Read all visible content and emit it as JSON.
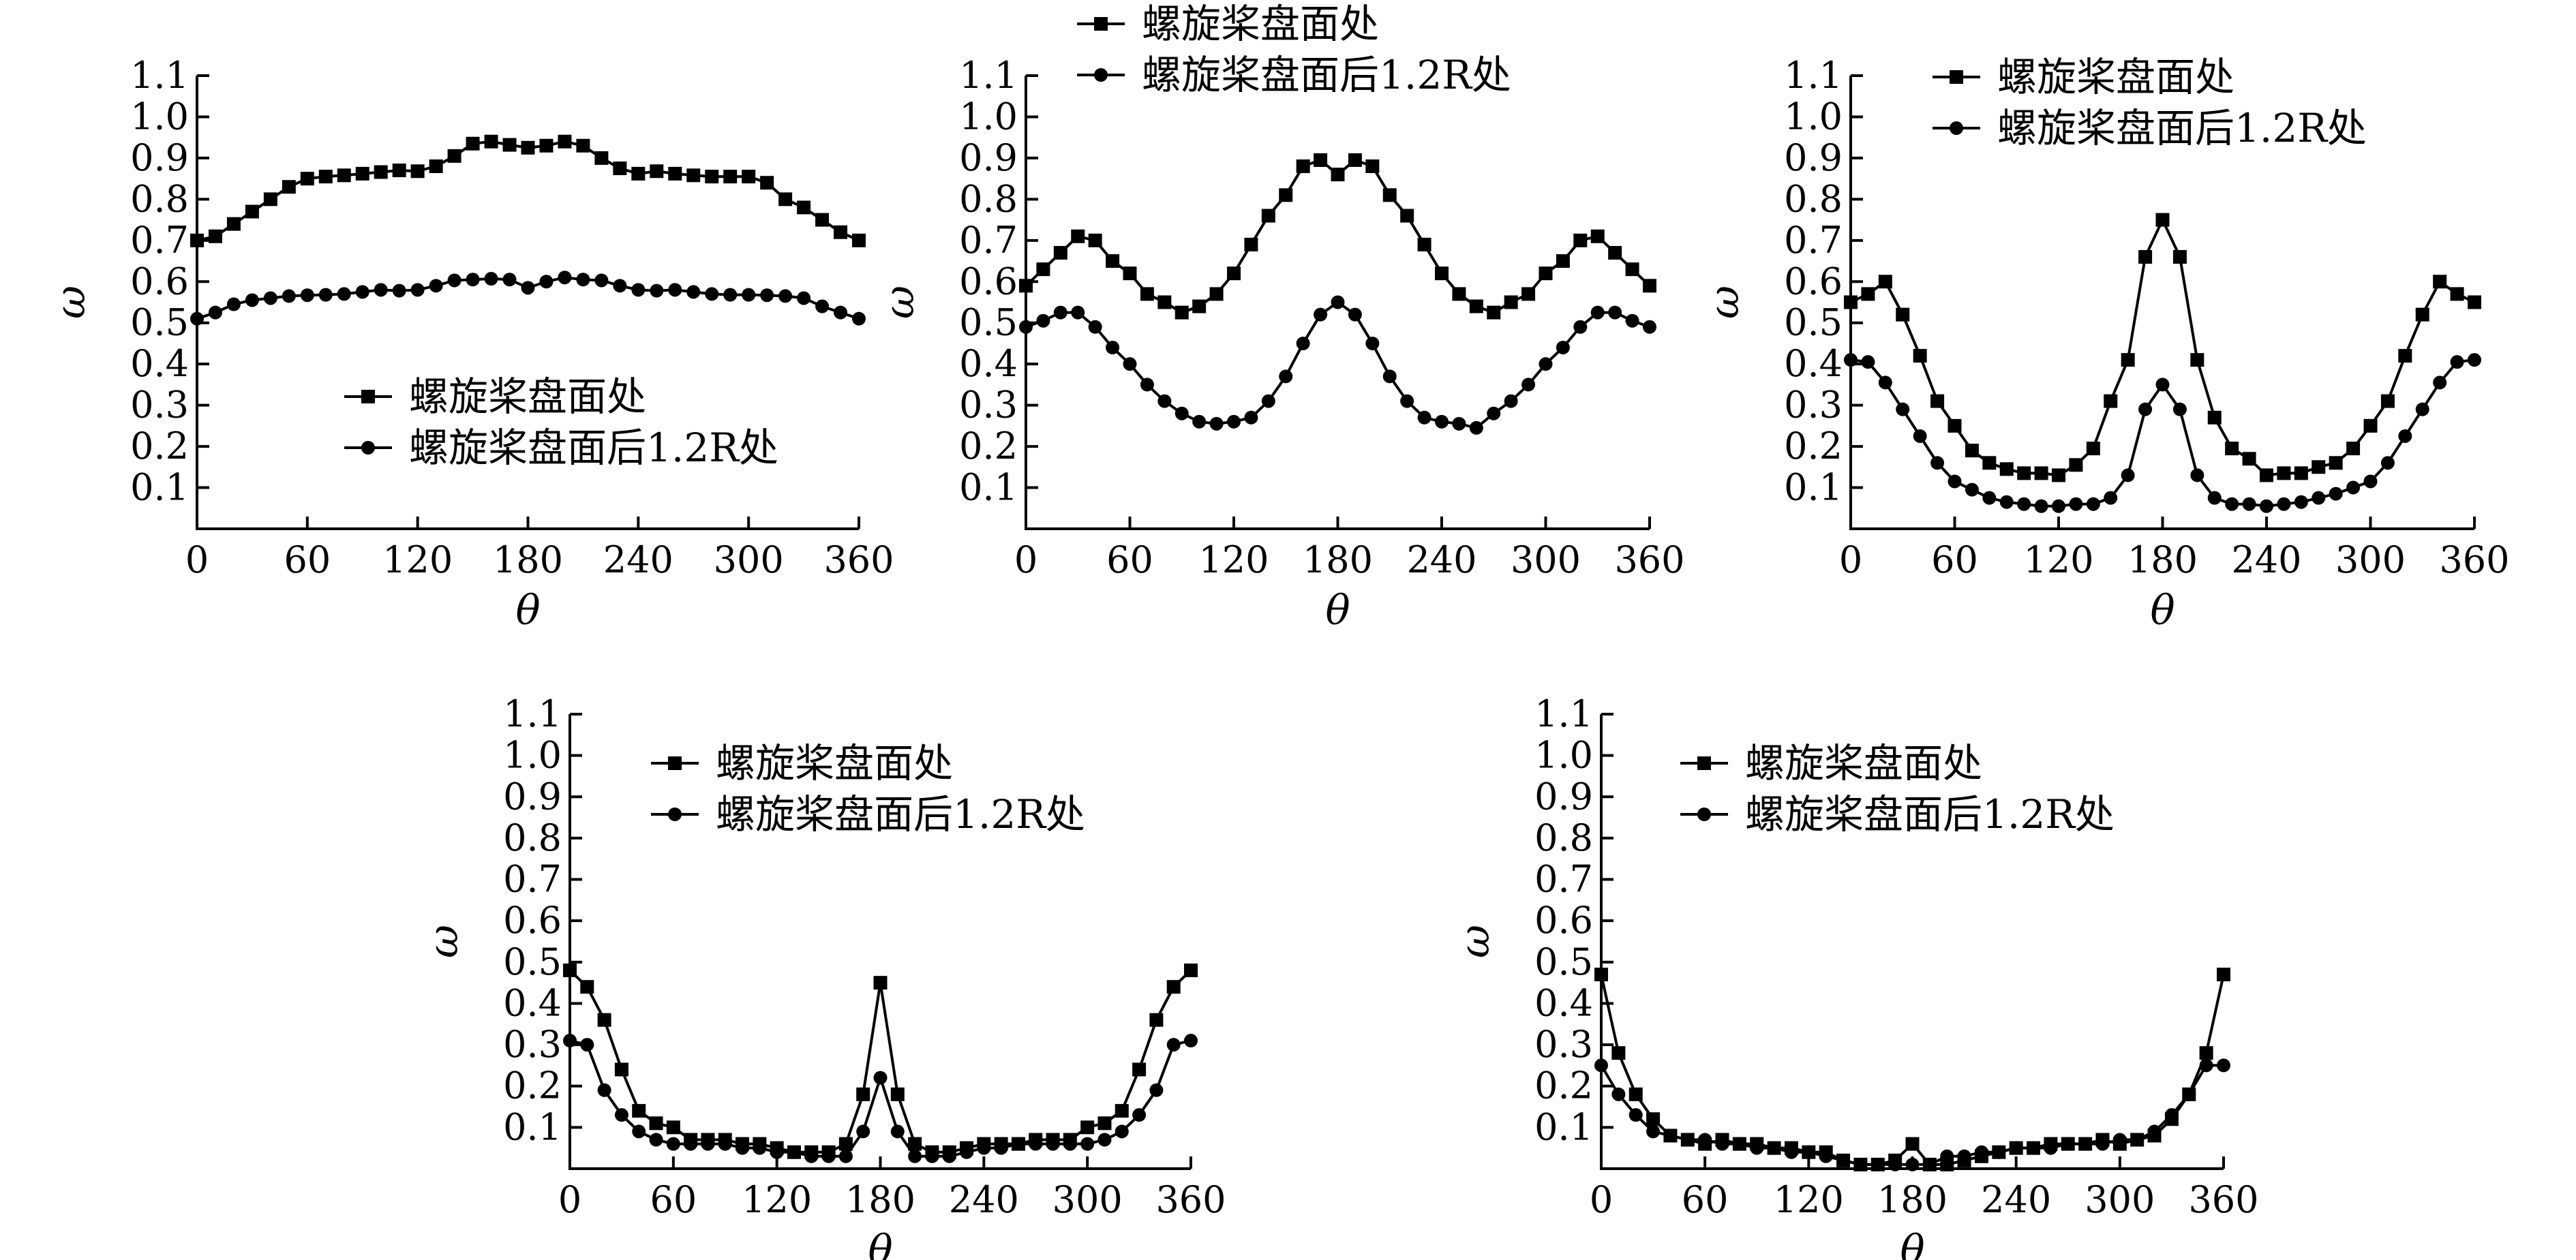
{
  "chart_data": [
    {
      "type": "line",
      "xlabel": "θ",
      "ylabel": "ω",
      "xlim": [
        0,
        360
      ],
      "ylim": [
        0,
        1.1
      ],
      "xticks": [
        "0",
        "60",
        "120",
        "180",
        "240",
        "300",
        "360"
      ],
      "yticks": [
        "0.1",
        "0.2",
        "0.3",
        "0.4",
        "0.5",
        "0.6",
        "0.7",
        "0.8",
        "0.9",
        "1.0",
        "1.1"
      ],
      "legend_position": "bottom-left",
      "x": [
        0,
        10,
        20,
        30,
        40,
        50,
        60,
        70,
        80,
        90,
        100,
        110,
        120,
        130,
        140,
        150,
        160,
        170,
        180,
        190,
        200,
        210,
        220,
        230,
        240,
        250,
        260,
        270,
        280,
        290,
        300,
        310,
        320,
        330,
        340,
        350,
        360
      ],
      "series": [
        {
          "name": "螺旋桨盘面处",
          "marker": "square",
          "values": [
            0.7,
            0.71,
            0.74,
            0.77,
            0.8,
            0.83,
            0.85,
            0.855,
            0.858,
            0.862,
            0.866,
            0.87,
            0.868,
            0.88,
            0.905,
            0.935,
            0.94,
            0.932,
            0.925,
            0.93,
            0.94,
            0.93,
            0.9,
            0.875,
            0.862,
            0.868,
            0.862,
            0.858,
            0.855,
            0.855,
            0.855,
            0.84,
            0.8,
            0.78,
            0.75,
            0.72,
            0.7
          ]
        },
        {
          "name": "螺旋桨盘面后1.2R处",
          "marker": "circle",
          "values": [
            0.51,
            0.525,
            0.545,
            0.555,
            0.56,
            0.565,
            0.567,
            0.568,
            0.57,
            0.575,
            0.58,
            0.578,
            0.58,
            0.59,
            0.603,
            0.605,
            0.607,
            0.605,
            0.585,
            0.6,
            0.61,
            0.605,
            0.603,
            0.59,
            0.58,
            0.578,
            0.58,
            0.575,
            0.57,
            0.568,
            0.568,
            0.567,
            0.565,
            0.56,
            0.54,
            0.525,
            0.51
          ]
        }
      ]
    },
    {
      "type": "line",
      "xlabel": "θ",
      "ylabel": "ω",
      "xlim": [
        0,
        360
      ],
      "ylim": [
        0,
        1.1
      ],
      "xticks": [
        "0",
        "60",
        "120",
        "180",
        "240",
        "300",
        "360"
      ],
      "yticks": [
        "0.1",
        "0.2",
        "0.3",
        "0.4",
        "0.5",
        "0.6",
        "0.7",
        "0.8",
        "0.9",
        "1.0",
        "1.1"
      ],
      "legend_position": "top-left",
      "x": [
        0,
        10,
        20,
        30,
        40,
        50,
        60,
        70,
        80,
        90,
        100,
        110,
        120,
        130,
        140,
        150,
        160,
        170,
        180,
        190,
        200,
        210,
        220,
        230,
        240,
        250,
        260,
        270,
        280,
        290,
        300,
        310,
        320,
        330,
        340,
        350,
        360
      ],
      "series": [
        {
          "name": "螺旋桨盘面处",
          "marker": "square",
          "values": [
            0.59,
            0.63,
            0.67,
            0.71,
            0.7,
            0.65,
            0.62,
            0.57,
            0.55,
            0.525,
            0.54,
            0.57,
            0.62,
            0.69,
            0.76,
            0.81,
            0.88,
            0.895,
            0.86,
            0.895,
            0.88,
            0.81,
            0.76,
            0.69,
            0.62,
            0.57,
            0.54,
            0.525,
            0.55,
            0.57,
            0.62,
            0.65,
            0.7,
            0.71,
            0.67,
            0.63,
            0.59
          ]
        },
        {
          "name": "螺旋桨盘面后1.2R处",
          "marker": "circle",
          "values": [
            0.49,
            0.505,
            0.525,
            0.525,
            0.49,
            0.44,
            0.4,
            0.35,
            0.31,
            0.28,
            0.26,
            0.255,
            0.26,
            0.27,
            0.31,
            0.37,
            0.45,
            0.52,
            0.55,
            0.52,
            0.45,
            0.37,
            0.31,
            0.27,
            0.26,
            0.255,
            0.245,
            0.28,
            0.31,
            0.35,
            0.4,
            0.44,
            0.49,
            0.525,
            0.525,
            0.505,
            0.49
          ]
        }
      ]
    },
    {
      "type": "line",
      "xlabel": "θ",
      "ylabel": "ω",
      "xlim": [
        0,
        360
      ],
      "ylim": [
        0,
        1.1
      ],
      "xticks": [
        "0",
        "60",
        "120",
        "180",
        "240",
        "300",
        "360"
      ],
      "yticks": [
        "0.1",
        "0.2",
        "0.3",
        "0.4",
        "0.5",
        "0.6",
        "0.7",
        "0.8",
        "0.9",
        "1.0",
        "1.1"
      ],
      "legend_position": "top-left",
      "x": [
        0,
        10,
        20,
        30,
        40,
        50,
        60,
        70,
        80,
        90,
        100,
        110,
        120,
        130,
        140,
        150,
        160,
        170,
        180,
        190,
        200,
        210,
        220,
        230,
        240,
        250,
        260,
        270,
        280,
        290,
        300,
        310,
        320,
        330,
        340,
        350,
        360
      ],
      "series": [
        {
          "name": "螺旋桨盘面处",
          "marker": "square",
          "values": [
            0.55,
            0.57,
            0.6,
            0.52,
            0.42,
            0.31,
            0.25,
            0.19,
            0.16,
            0.145,
            0.135,
            0.135,
            0.13,
            0.155,
            0.195,
            0.31,
            0.41,
            0.66,
            0.75,
            0.66,
            0.41,
            0.27,
            0.195,
            0.17,
            0.13,
            0.135,
            0.135,
            0.15,
            0.16,
            0.195,
            0.25,
            0.31,
            0.42,
            0.52,
            0.6,
            0.57,
            0.55
          ]
        },
        {
          "name": "螺旋桨盘面后1.2R处",
          "marker": "circle",
          "values": [
            0.41,
            0.405,
            0.355,
            0.29,
            0.225,
            0.16,
            0.115,
            0.095,
            0.075,
            0.065,
            0.06,
            0.055,
            0.055,
            0.06,
            0.06,
            0.075,
            0.13,
            0.29,
            0.35,
            0.29,
            0.13,
            0.075,
            0.06,
            0.06,
            0.055,
            0.06,
            0.065,
            0.075,
            0.085,
            0.1,
            0.115,
            0.16,
            0.225,
            0.29,
            0.355,
            0.405,
            0.41
          ]
        }
      ]
    },
    {
      "type": "line",
      "xlabel": "θ",
      "ylabel": "ω",
      "xlim": [
        0,
        360
      ],
      "ylim": [
        0,
        1.1
      ],
      "xticks": [
        "0",
        "60",
        "120",
        "180",
        "240",
        "300",
        "360"
      ],
      "yticks": [
        "0.1",
        "0.2",
        "0.3",
        "0.4",
        "0.5",
        "0.6",
        "0.7",
        "0.8",
        "0.9",
        "1.0",
        "1.1"
      ],
      "legend_position": "top-left",
      "x": [
        0,
        10,
        20,
        30,
        40,
        50,
        60,
        70,
        80,
        90,
        100,
        110,
        120,
        130,
        140,
        150,
        160,
        170,
        180,
        190,
        200,
        210,
        220,
        230,
        240,
        250,
        260,
        270,
        280,
        290,
        300,
        310,
        320,
        330,
        340,
        350,
        360
      ],
      "series": [
        {
          "name": "螺旋桨盘面处",
          "marker": "square",
          "values": [
            0.48,
            0.44,
            0.36,
            0.24,
            0.14,
            0.11,
            0.1,
            0.07,
            0.07,
            0.07,
            0.06,
            0.06,
            0.05,
            0.04,
            0.04,
            0.04,
            0.06,
            0.18,
            0.45,
            0.18,
            0.06,
            0.04,
            0.04,
            0.05,
            0.06,
            0.06,
            0.06,
            0.07,
            0.07,
            0.07,
            0.1,
            0.11,
            0.14,
            0.24,
            0.36,
            0.44,
            0.48
          ]
        },
        {
          "name": "螺旋桨盘面后1.2R处",
          "marker": "circle",
          "values": [
            0.31,
            0.3,
            0.19,
            0.13,
            0.09,
            0.07,
            0.06,
            0.06,
            0.06,
            0.06,
            0.05,
            0.05,
            0.04,
            0.04,
            0.03,
            0.03,
            0.03,
            0.09,
            0.22,
            0.09,
            0.03,
            0.03,
            0.03,
            0.04,
            0.05,
            0.05,
            0.06,
            0.06,
            0.06,
            0.06,
            0.06,
            0.07,
            0.09,
            0.13,
            0.19,
            0.3,
            0.31
          ]
        }
      ]
    },
    {
      "type": "line",
      "xlabel": "θ",
      "ylabel": "ω",
      "xlim": [
        0,
        360
      ],
      "ylim": [
        0,
        1.1
      ],
      "xticks": [
        "0",
        "60",
        "120",
        "180",
        "240",
        "300",
        "360"
      ],
      "yticks": [
        "0.1",
        "0.2",
        "0.3",
        "0.4",
        "0.5",
        "0.6",
        "0.7",
        "0.8",
        "0.9",
        "1.0",
        "1.1"
      ],
      "legend_position": "top-left",
      "x": [
        0,
        10,
        20,
        30,
        40,
        50,
        60,
        70,
        80,
        90,
        100,
        110,
        120,
        130,
        140,
        150,
        160,
        170,
        180,
        190,
        200,
        210,
        220,
        230,
        240,
        250,
        260,
        270,
        280,
        290,
        300,
        310,
        320,
        330,
        340,
        350,
        360
      ],
      "series": [
        {
          "name": "螺旋桨盘面处",
          "marker": "square",
          "values": [
            0.47,
            0.28,
            0.18,
            0.12,
            0.08,
            0.07,
            0.06,
            0.07,
            0.06,
            0.06,
            0.05,
            0.05,
            0.04,
            0.04,
            0.02,
            0.01,
            0.01,
            0.02,
            0.06,
            0.01,
            0.01,
            0.02,
            0.03,
            0.04,
            0.05,
            0.05,
            0.06,
            0.06,
            0.06,
            0.07,
            0.06,
            0.07,
            0.08,
            0.12,
            0.18,
            0.28,
            0.47
          ]
        },
        {
          "name": "螺旋桨盘面后1.2R处",
          "marker": "circle",
          "values": [
            0.25,
            0.18,
            0.13,
            0.09,
            0.08,
            0.07,
            0.07,
            0.06,
            0.06,
            0.05,
            0.05,
            0.04,
            0.04,
            0.03,
            0.02,
            0.01,
            0.01,
            0.01,
            0.01,
            0.01,
            0.03,
            0.03,
            0.04,
            0.04,
            0.05,
            0.05,
            0.05,
            0.06,
            0.06,
            0.06,
            0.07,
            0.07,
            0.09,
            0.13,
            0.18,
            0.25,
            0.25
          ]
        }
      ]
    }
  ]
}
